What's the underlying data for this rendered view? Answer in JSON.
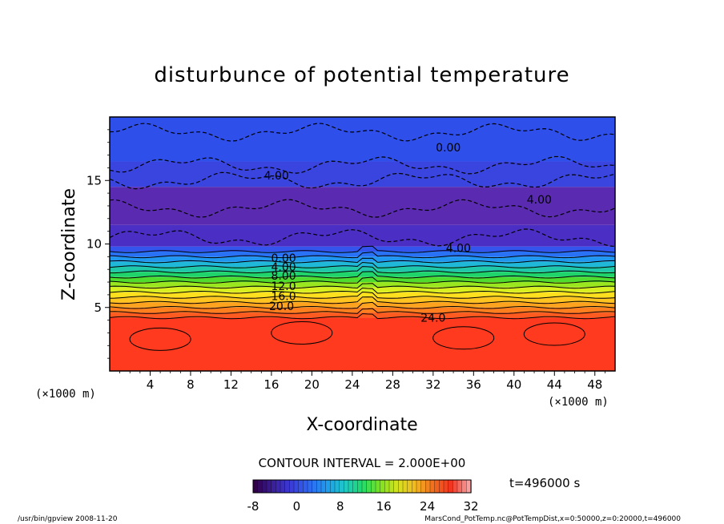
{
  "chart_data": {
    "type": "heatmap",
    "title": "disturbunce of potential temperature",
    "xlabel": "X-coordinate",
    "ylabel": "Z-coordinate",
    "x_unit_left": "(×1000 m)",
    "x_unit_right": "(×1000 m)",
    "xlim": [
      0,
      50
    ],
    "ylim": [
      0,
      20
    ],
    "x_ticks": [
      4,
      8,
      12,
      16,
      20,
      24,
      28,
      32,
      36,
      40,
      44,
      48
    ],
    "y_ticks": [
      5,
      10,
      15
    ],
    "contour_interval": "CONTOUR INTERVAL = 2.000E+00",
    "contour_labels": [
      {
        "text": "0.00",
        "x": 33.5,
        "z": 17.6
      },
      {
        "text": "4.00",
        "x": 16.5,
        "z": 15.4
      },
      {
        "text": "4.00",
        "x": 42.5,
        "z": 13.5
      },
      {
        "text": "4.00",
        "x": 34.5,
        "z": 9.7
      },
      {
        "text": "0.00",
        "x": 17.2,
        "z": 8.9
      },
      {
        "text": "4.00",
        "x": 17.2,
        "z": 8.2
      },
      {
        "text": "8.00",
        "x": 17.2,
        "z": 7.5
      },
      {
        "text": "12.0",
        "x": 17.2,
        "z": 6.7
      },
      {
        "text": "16.0",
        "x": 17.2,
        "z": 5.9
      },
      {
        "text": "20.0",
        "x": 17.0,
        "z": 5.1
      },
      {
        "text": "24.0",
        "x": 32.0,
        "z": 4.2
      }
    ],
    "colorbar": {
      "min": -8,
      "max": 32,
      "tick_labels": [
        "-8",
        "0",
        "8",
        "16",
        "24",
        "32"
      ],
      "colors": [
        "#30004a",
        "#3a1f9a",
        "#3b3bd8",
        "#2f66f2",
        "#1f9af0",
        "#1fc8c8",
        "#1fdc6e",
        "#7ae21f",
        "#d6e21f",
        "#f2b81f",
        "#f26e1f",
        "#f2341f",
        "#f8a0a0"
      ]
    },
    "time_label": "t=496000 s",
    "bands": [
      {
        "z0": 0,
        "z1": 4.2,
        "color": "#ff3a1f"
      },
      {
        "z0": 4.2,
        "z1": 4.6,
        "color": "#ff5a1f"
      },
      {
        "z0": 4.6,
        "z1": 5.0,
        "color": "#ff7f1f"
      },
      {
        "z0": 5.0,
        "z1": 5.4,
        "color": "#ffa31f"
      },
      {
        "z0": 5.4,
        "z1": 5.8,
        "color": "#ffc41f"
      },
      {
        "z0": 5.8,
        "z1": 6.2,
        "color": "#ffe01f"
      },
      {
        "z0": 6.2,
        "z1": 6.6,
        "color": "#d9ef1f"
      },
      {
        "z0": 6.6,
        "z1": 7.0,
        "color": "#9ae61f"
      },
      {
        "z0": 7.0,
        "z1": 7.4,
        "color": "#4fdc2f"
      },
      {
        "z0": 7.4,
        "z1": 7.8,
        "color": "#1fd46a"
      },
      {
        "z0": 7.8,
        "z1": 8.2,
        "color": "#1fc8a8"
      },
      {
        "z0": 8.2,
        "z1": 8.6,
        "color": "#1fb8d8"
      },
      {
        "z0": 8.6,
        "z1": 9.0,
        "color": "#1f97f0"
      },
      {
        "z0": 9.0,
        "z1": 9.4,
        "color": "#2a72f5"
      },
      {
        "z0": 9.4,
        "z1": 9.8,
        "color": "#3454ee"
      },
      {
        "z0": 9.8,
        "z1": 11.5,
        "color": "#4b2fc4"
      },
      {
        "z0": 11.5,
        "z1": 14.5,
        "color": "#5a2ab0"
      },
      {
        "z0": 14.5,
        "z1": 16.5,
        "color": "#3a45e0"
      },
      {
        "z0": 16.5,
        "z1": 20,
        "color": "#2f4fea"
      }
    ],
    "footer_left": "/usr/bin/gpview   2008-11-20",
    "footer_right": "MarsCond_PotTemp.nc@PotTempDist,x=0:50000,z=0:20000,t=496000"
  }
}
